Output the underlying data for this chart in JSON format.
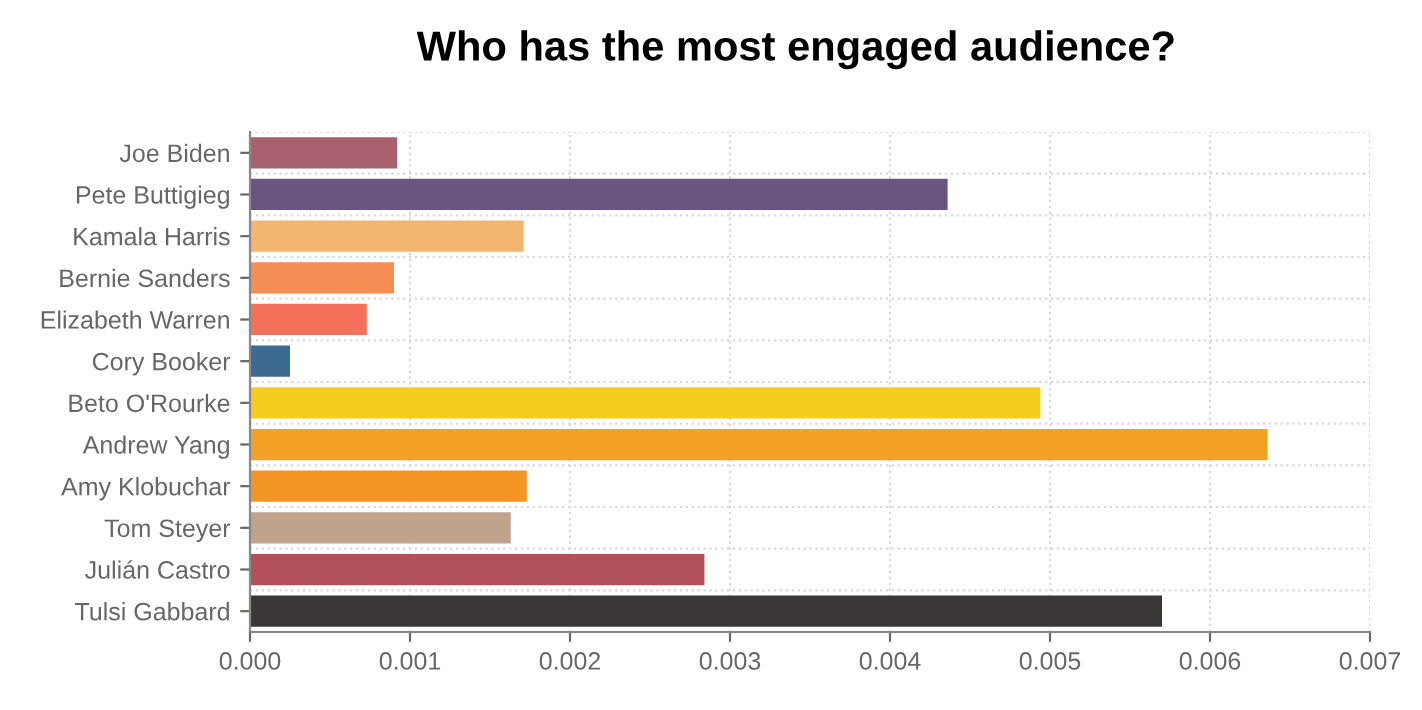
{
  "chart_data": {
    "type": "bar",
    "orientation": "horizontal",
    "title": "Who has the most engaged audience?",
    "categories": [
      "Joe Biden",
      "Pete Buttigieg",
      "Kamala Harris",
      "Bernie Sanders",
      "Elizabeth Warren",
      "Cory Booker",
      "Beto O'Rourke",
      "Andrew Yang",
      "Amy Klobuchar",
      "Tom Steyer",
      "Julián Castro",
      "Tulsi Gabbard"
    ],
    "values": [
      0.00092,
      0.00436,
      0.00171,
      0.0009,
      0.00073,
      0.00025,
      0.00494,
      0.00636,
      0.00173,
      0.00163,
      0.00284,
      0.0057
    ],
    "colors": [
      "#a8606f",
      "#6a5580",
      "#f2b46e",
      "#f58d55",
      "#f5705a",
      "#3d6a92",
      "#f5cd1e",
      "#f2a124",
      "#f29524",
      "#bfa38c",
      "#b2505c",
      "#3b3736"
    ],
    "xlim": [
      0,
      0.007
    ],
    "xticks": [
      {
        "value": 0,
        "label": "0.000"
      },
      {
        "value": 0.001,
        "label": "0.001"
      },
      {
        "value": 0.002,
        "label": "0.002"
      },
      {
        "value": 0.003,
        "label": "0.003"
      },
      {
        "value": 0.004,
        "label": "0.004"
      },
      {
        "value": 0.005,
        "label": "0.005"
      },
      {
        "value": 0.006,
        "label": "0.006"
      },
      {
        "value": 0.007,
        "label": "0.007"
      }
    ],
    "grid": true
  }
}
